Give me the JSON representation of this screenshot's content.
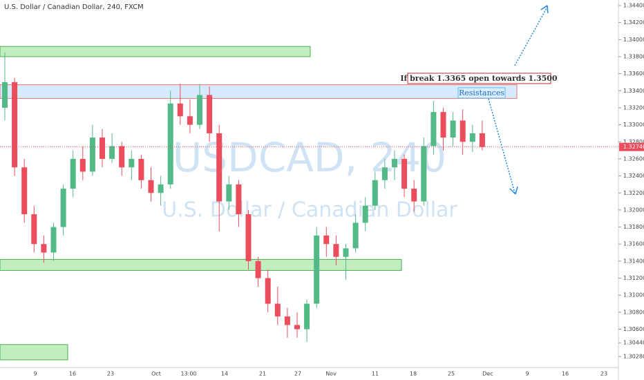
{
  "chart_data": {
    "type": "candlestick",
    "title": "U.S. Dollar / Canadian Dollar, 240, FXCM",
    "watermark": "USDCAD, 240",
    "watermark_subtitle": "U.S. Dollar / Canadian Dollar",
    "up_color": "#53b987",
    "down_color": "#eb4d5c",
    "open": [
      1.332,
      1.335,
      1.325,
      1.3195,
      1.316,
      1.315,
      1.318,
      1.3225,
      1.326,
      1.3245,
      1.3285,
      1.326,
      1.3275,
      1.325,
      1.326,
      1.3235,
      1.322,
      1.323,
      1.3325,
      1.331,
      1.33,
      1.3335,
      1.329,
      1.321,
      1.323,
      1.3195,
      1.314,
      1.312,
      1.309,
      1.3075,
      1.3065,
      1.306,
      1.309,
      1.317,
      1.316,
      1.3145,
      1.3155,
      1.3185,
      1.3205,
      1.3235,
      1.325,
      1.326,
      1.3225,
      1.321,
      1.3275,
      1.3315,
      1.3285,
      1.3305,
      1.328,
      1.329
    ],
    "high": [
      1.3385,
      1.3355,
      1.326,
      1.3205,
      1.317,
      1.3185,
      1.323,
      1.327,
      1.3275,
      1.33,
      1.3295,
      1.329,
      1.328,
      1.327,
      1.3265,
      1.325,
      1.324,
      1.334,
      1.3348,
      1.333,
      1.3348,
      1.3345,
      1.33,
      1.324,
      1.3235,
      1.32,
      1.3145,
      1.313,
      1.311,
      1.3085,
      1.308,
      1.3095,
      1.318,
      1.318,
      1.317,
      1.316,
      1.3195,
      1.3215,
      1.3245,
      1.326,
      1.327,
      1.3265,
      1.3235,
      1.3285,
      1.3328,
      1.332,
      1.3315,
      1.3318,
      1.33,
      1.3305
    ],
    "low": [
      1.3305,
      1.324,
      1.3185,
      1.315,
      1.3138,
      1.314,
      1.317,
      1.3215,
      1.3235,
      1.324,
      1.325,
      1.3255,
      1.324,
      1.3235,
      1.3225,
      1.321,
      1.3205,
      1.3225,
      1.33,
      1.329,
      1.3295,
      1.328,
      1.3175,
      1.32,
      1.318,
      1.313,
      1.311,
      1.308,
      1.3065,
      1.305,
      1.305,
      1.3045,
      1.3085,
      1.3145,
      1.3135,
      1.3118,
      1.315,
      1.3175,
      1.32,
      1.3225,
      1.3235,
      1.3215,
      1.3198,
      1.3205,
      1.3265,
      1.327,
      1.3275,
      1.3265,
      1.3268,
      1.327
    ],
    "close": [
      1.335,
      1.325,
      1.3195,
      1.316,
      1.315,
      1.318,
      1.3225,
      1.326,
      1.3245,
      1.3285,
      1.326,
      1.3275,
      1.325,
      1.326,
      1.3235,
      1.322,
      1.323,
      1.3325,
      1.331,
      1.33,
      1.3335,
      1.329,
      1.321,
      1.323,
      1.3195,
      1.314,
      1.312,
      1.309,
      1.3075,
      1.3065,
      1.306,
      1.309,
      1.317,
      1.316,
      1.3145,
      1.3155,
      1.3185,
      1.3205,
      1.3235,
      1.325,
      1.326,
      1.3225,
      1.321,
      1.3275,
      1.3315,
      1.3285,
      1.3305,
      1.328,
      1.329,
      1.3274
    ],
    "x_labels": [
      "9",
      "16",
      "23",
      "Oct",
      "13:00",
      "14",
      "21",
      "27",
      "Nov",
      "11",
      "18",
      "25",
      "Dec",
      "9",
      "16",
      "23"
    ],
    "ylim": [
      1.3015,
      1.34465
    ],
    "yticks": [
      {
        "value": 1.344,
        "label": "1.34400"
      },
      {
        "value": 1.342,
        "label": "1.34200"
      },
      {
        "value": 1.34,
        "label": "1.34000"
      },
      {
        "value": 1.338,
        "label": "1.33800"
      },
      {
        "value": 1.336,
        "label": "1.33600"
      },
      {
        "value": 1.334,
        "label": "1.33400"
      },
      {
        "value": 1.332,
        "label": "1.33200"
      },
      {
        "value": 1.33,
        "label": "1.33000"
      },
      {
        "value": 1.328,
        "label": "1.32800"
      },
      {
        "value": 1.326,
        "label": "1.32600"
      },
      {
        "value": 1.324,
        "label": "1.32400"
      },
      {
        "value": 1.322,
        "label": "1.32200"
      },
      {
        "value": 1.32,
        "label": "1.32000"
      },
      {
        "value": 1.318,
        "label": "1.31800"
      },
      {
        "value": 1.316,
        "label": "1.31600"
      },
      {
        "value": 1.314,
        "label": "1.31400"
      },
      {
        "value": 1.312,
        "label": "1.31200"
      },
      {
        "value": 1.31,
        "label": "1.31000"
      },
      {
        "value": 1.308,
        "label": "1.30800"
      },
      {
        "value": 1.306,
        "label": "1.30600"
      },
      {
        "value": 1.3044,
        "label": "1.30440"
      },
      {
        "value": 1.3028,
        "label": "1.30280"
      }
    ],
    "last_price": {
      "value": 1.3274,
      "label": "1.32740"
    },
    "zones": [
      {
        "top": 1.3392,
        "bottom": 1.338,
        "color": "green"
      },
      {
        "top": 1.3347,
        "bottom": 1.3331,
        "color": "blue"
      },
      {
        "top": 1.3142,
        "bottom": 1.3129,
        "color": "green"
      },
      {
        "top": 1.3042,
        "bottom": 1.3024,
        "color": "green"
      }
    ],
    "annotations": [
      "If break 1.3365 open towards 1.3500",
      "Resistances"
    ]
  }
}
